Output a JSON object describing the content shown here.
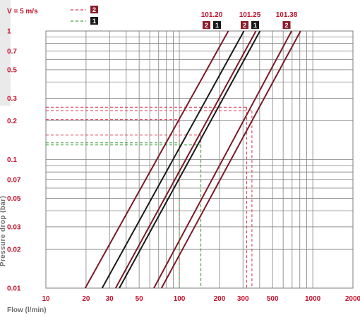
{
  "chart_data": {
    "type": "line",
    "title": "",
    "xlabel": "Flow (l/min)",
    "ylabel": "Pressure drop (bar)",
    "x_scale": "log",
    "y_scale": "log",
    "xlim": [
      10,
      2000
    ],
    "ylim": [
      0.01,
      1
    ],
    "x_ticks": [
      10,
      20,
      30,
      50,
      100,
      200,
      300,
      500,
      1000,
      2000
    ],
    "x_tick_labels": [
      "10",
      "20",
      "30",
      "50",
      "100",
      "200",
      "300",
      "500",
      "1000",
      "2000"
    ],
    "y_ticks": [
      0.01,
      0.02,
      0.03,
      0.05,
      0.07,
      0.1,
      0.2,
      0.3,
      0.5,
      0.7,
      1
    ],
    "y_tick_labels": [
      "0.01",
      "0.02",
      "0.03",
      "0.05",
      "0.07",
      "0.1",
      "0.2",
      "0.3",
      "0.5",
      "0.7",
      "1"
    ],
    "grid": true,
    "legend": {
      "title": "V = 5 m/s",
      "entries": [
        {
          "line": "red-dashed",
          "badge": "2"
        },
        {
          "line": "green-dashed",
          "badge": "1"
        }
      ]
    },
    "curve_labels": [
      {
        "model": "101.20",
        "badges": [
          "2",
          "1"
        ]
      },
      {
        "model": "101.25",
        "badges": [
          "2",
          "1"
        ]
      },
      {
        "model": "101.38",
        "badges": [
          "2"
        ]
      }
    ],
    "series": [
      {
        "model": "101.20",
        "badge": "2",
        "color": "#7a1b26",
        "points": [
          [
            19.7,
            0.01
          ],
          [
            233,
            1.0
          ]
        ]
      },
      {
        "model": "101.20",
        "badge": "1",
        "color": "#1a1a1a",
        "points": [
          [
            26.4,
            0.01
          ],
          [
            305,
            1.0
          ]
        ]
      },
      {
        "model": "101.25",
        "badge": "2",
        "color": "#7a1b26",
        "points": [
          [
            33.3,
            0.01
          ],
          [
            375,
            1.0
          ]
        ]
      },
      {
        "model": "101.25",
        "badge": "1",
        "color": "#1a1a1a",
        "points": [
          [
            35.5,
            0.01
          ],
          [
            402,
            1.0
          ]
        ]
      },
      {
        "model": "101.38",
        "badge": "2",
        "color": "#7a1b26",
        "points": [
          [
            64.5,
            0.01
          ],
          [
            694,
            1.0
          ]
        ]
      },
      {
        "model": "101.38",
        "badge": "2",
        "color": "#7a1b26",
        "points": [
          [
            73.5,
            0.01
          ],
          [
            810,
            1.0
          ]
        ]
      }
    ],
    "reference_lines": [
      {
        "style": "red-dashed",
        "x": 100,
        "y": 0.205
      },
      {
        "style": "red-dashed",
        "x": 145,
        "y": 0.155
      },
      {
        "style": "red-dashed",
        "x": 320,
        "y": 0.255
      },
      {
        "style": "red-dashed",
        "x": 350,
        "y": 0.24
      },
      {
        "style": "green-dashed",
        "x": 100,
        "y": 0.135
      },
      {
        "style": "green-dashed",
        "x": 145,
        "y": 0.13
      }
    ],
    "colors": {
      "label_red": "#c0122d",
      "curve_dark_red": "#7a1b26",
      "curve_black": "#1a1a1a",
      "dash_red": "#d9304a",
      "dash_green": "#3aa03a",
      "grid": "#7f7f7f",
      "axis_title": "#6e6e6e",
      "badge_red": "#8c1d2a",
      "badge_black": "#1a1a1a"
    }
  }
}
